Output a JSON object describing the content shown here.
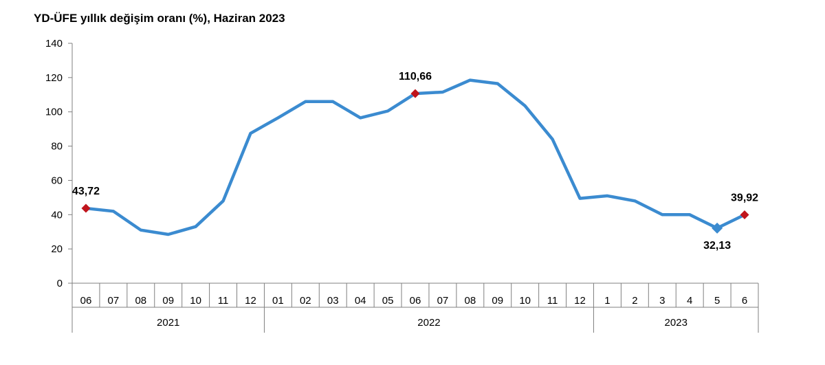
{
  "chart_data": {
    "type": "line",
    "title": "YD-ÜFE yıllık değişim oranı (%), Haziran 2023",
    "xlabel": "",
    "ylabel": "",
    "ylim": [
      0,
      140
    ],
    "yticks": [
      0,
      20,
      40,
      60,
      80,
      100,
      120,
      140
    ],
    "grid": false,
    "legend": "none",
    "colors": {
      "line": "#3b8bd0",
      "marker": "#c0141c",
      "axis": "#7f7f7f"
    },
    "categories": [
      "06",
      "07",
      "08",
      "09",
      "10",
      "11",
      "12",
      "01",
      "02",
      "03",
      "04",
      "05",
      "06",
      "07",
      "08",
      "09",
      "10",
      "11",
      "12",
      "1",
      "2",
      "3",
      "4",
      "5",
      "6"
    ],
    "groups": [
      {
        "label": "2021",
        "count": 7
      },
      {
        "label": "2022",
        "count": 12
      },
      {
        "label": "2023",
        "count": 6
      }
    ],
    "series": [
      {
        "values": [
          43.72,
          42.0,
          31.0,
          28.5,
          33.0,
          48.0,
          87.5,
          96.5,
          106.0,
          106.0,
          96.5,
          100.5,
          110.66,
          111.5,
          118.5,
          116.5,
          103.5,
          84.0,
          49.5,
          51.0,
          48.0,
          40.0,
          40.0,
          32.13,
          39.92
        ]
      }
    ],
    "annotations": [
      {
        "index": 0,
        "text": "43,72",
        "marker": "diamond-red",
        "position": "above"
      },
      {
        "index": 12,
        "text": "110,66",
        "marker": "diamond-red",
        "position": "above"
      },
      {
        "index": 23,
        "text": "32,13",
        "marker": "diamond-blue",
        "position": "below"
      },
      {
        "index": 24,
        "text": "39,92",
        "marker": "diamond-red",
        "position": "above"
      }
    ]
  }
}
